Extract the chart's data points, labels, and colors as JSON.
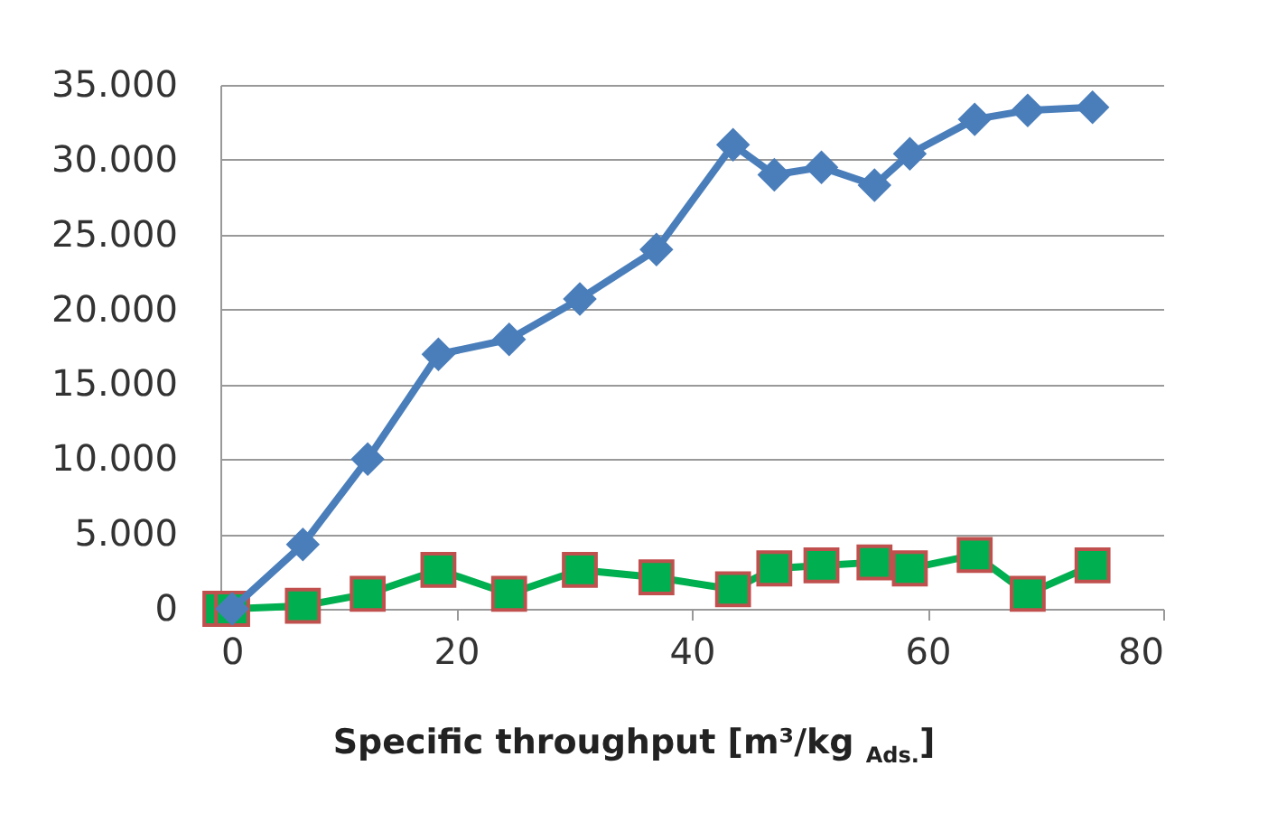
{
  "chart_data": {
    "type": "line",
    "xlabel": "Specific throughput  [m³/kg $_{Ads.}$]",
    "series": [
      {
        "color": "#4a7ebb",
        "marker": "diamond",
        "x": [
          1,
          7,
          12.5,
          18.5,
          24.5,
          30.5,
          37,
          43.5,
          47,
          51,
          55.5,
          58.5,
          64,
          68.5,
          74
        ],
        "values": [
          0,
          4300,
          10000,
          17000,
          18000,
          20700,
          24000,
          31000,
          29000,
          29500,
          28300,
          30400,
          32700,
          33300,
          33500
        ]
      },
      {
        "color": "#00b050",
        "marker": "square",
        "x": [
          0,
          1,
          7,
          12.5,
          18.5,
          24.5,
          30.5,
          37,
          43.5,
          47,
          51,
          55.5,
          58.5,
          64,
          68.5,
          74
        ],
        "values": [
          0,
          0,
          200,
          1000,
          2600,
          1000,
          2600,
          2100,
          1300,
          2700,
          2900,
          3100,
          2700,
          3600,
          1000,
          2900
        ]
      }
    ],
    "xlim": [
      0,
      80
    ],
    "xticks": [
      0,
      20,
      40,
      60,
      80
    ],
    "ylim": [
      0,
      35000
    ],
    "yticks": [
      {
        "value": 0,
        "label": "0"
      },
      {
        "value": 5000,
        "label": "5.000"
      },
      {
        "value": 10000,
        "label": "10.000"
      },
      {
        "value": 15000,
        "label": "15.000"
      },
      {
        "value": 20000,
        "label": "20.000"
      },
      {
        "value": 25000,
        "label": "25.000"
      },
      {
        "value": 30000,
        "label": "30.000"
      },
      {
        "value": 35000,
        "label": "35.000"
      }
    ],
    "grid": "y"
  }
}
